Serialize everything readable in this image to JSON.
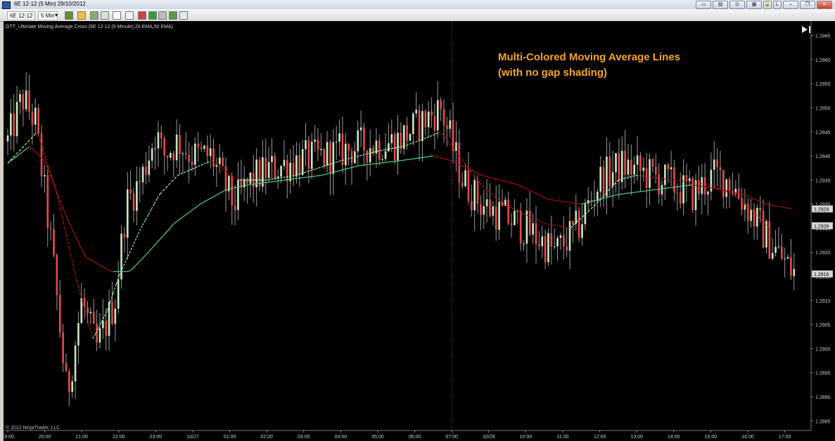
{
  "window": {
    "title": "6E 12-12 (5 Min)  29/10/2012",
    "buttons": [
      "min",
      "restore",
      "close"
    ],
    "extra_badges": [
      "L"
    ]
  },
  "toolbar": {
    "instrument": "6E 12-12",
    "interval": "5 Min",
    "icons": [
      "bars-type-icon",
      "pencil-icon",
      "drawing-icon",
      "pin-icon",
      "crosshair-icon",
      "properties-icon",
      "data-box-icon",
      "strategy-icon",
      "chart-trader-icon",
      "new-window-icon"
    ]
  },
  "chart_data": {
    "type": "candlestick",
    "indicator_label": "GTT_Ultimate Moving Average Cross (6E 12-12 (5 Minute),20 EMA,50 EMA)",
    "annotation": [
      "Multi-Colored Moving Average Lines",
      "(with no gap shading)"
    ],
    "copyright": "© 2012 NinjaTrader, LLC",
    "x_labels": [
      "19:00",
      "20:00",
      "21:00",
      "22:00",
      "23:00",
      "10/27",
      "01:00",
      "02:00",
      "03:00",
      "04:00",
      "05:00",
      "06:00",
      "07:00",
      "10/29",
      "10:00",
      "11:00",
      "12:00",
      "13:00",
      "14:00",
      "15:00",
      "16:00",
      "17:00"
    ],
    "y_labels": [
      "1.2965",
      "1.2960",
      "1.2955",
      "1.2950",
      "1.2945",
      "1.2940",
      "1.2935",
      "1.2930",
      "1.2925",
      "1.2920",
      "1.2915",
      "1.2910",
      "1.2905",
      "1.2900",
      "1.2895",
      "1.2890",
      "1.2885"
    ],
    "ylim": [
      1.2883,
      1.2968
    ],
    "price_markers": [
      {
        "value": 1.2929,
        "label": "1.2929"
      },
      {
        "value": 1.29255,
        "label": "1.2926"
      },
      {
        "value": 1.29155,
        "label": "1.2916"
      }
    ],
    "session_break_index": 12,
    "anchors": {
      "close_path": [
        [
          0,
          1.2943
        ],
        [
          0.4,
          1.2952
        ],
        [
          0.75,
          1.2947
        ],
        [
          1.2,
          1.292
        ],
        [
          1.6,
          1.289
        ],
        [
          2.0,
          1.291
        ],
        [
          2.4,
          1.29
        ],
        [
          2.9,
          1.291
        ],
        [
          3.2,
          1.293
        ],
        [
          3.6,
          1.2935
        ],
        [
          4.0,
          1.2945
        ],
        [
          4.2,
          1.294
        ],
        [
          4.6,
          1.2943
        ],
        [
          5.0,
          1.294
        ],
        [
          5.5,
          1.294
        ],
        [
          6.1,
          1.293
        ],
        [
          6.6,
          1.2935
        ],
        [
          7.0,
          1.2937
        ],
        [
          7.8,
          1.2939
        ],
        [
          8.6,
          1.294
        ],
        [
          9.5,
          1.2942
        ],
        [
          10.5,
          1.2943
        ],
        [
          11.2,
          1.2947
        ],
        [
          11.7,
          1.295
        ],
        [
          12.3,
          1.2935
        ],
        [
          12.8,
          1.293
        ],
        [
          13.3,
          1.2928
        ],
        [
          14.0,
          1.2925
        ],
        [
          14.8,
          1.292
        ],
        [
          15.4,
          1.2925
        ],
        [
          16.0,
          1.2935
        ],
        [
          16.6,
          1.2938
        ],
        [
          17.0,
          1.2937
        ],
        [
          17.7,
          1.2935
        ],
        [
          18.5,
          1.2932
        ],
        [
          19.1,
          1.2936
        ],
        [
          19.5,
          1.2935
        ],
        [
          20.1,
          1.2928
        ],
        [
          20.6,
          1.2922
        ],
        [
          21.0,
          1.2918
        ],
        [
          21.2,
          1.2916
        ]
      ],
      "ema20": [
        [
          0,
          1.29385
        ],
        [
          0.8,
          1.2945
        ],
        [
          1.3,
          1.2933
        ],
        [
          1.9,
          1.2913
        ],
        [
          2.3,
          1.2902
        ],
        [
          2.7,
          1.2908
        ],
        [
          3.0,
          1.2915
        ],
        [
          3.6,
          1.2925
        ],
        [
          4.1,
          1.2932
        ],
        [
          4.6,
          1.2936
        ],
        [
          5.5,
          1.2939
        ],
        [
          6.2,
          1.2935
        ],
        [
          7.0,
          1.2935
        ],
        [
          7.8,
          1.2936
        ],
        [
          9.0,
          1.2939
        ],
        [
          10.0,
          1.2941
        ],
        [
          10.7,
          1.2942
        ],
        [
          11.4,
          1.2944
        ],
        [
          11.7,
          1.2945
        ],
        [
          12.2,
          1.294
        ],
        [
          12.8,
          1.2934
        ],
        [
          13.4,
          1.293
        ],
        [
          14.5,
          1.2926
        ],
        [
          15.2,
          1.2925
        ],
        [
          15.9,
          1.293
        ],
        [
          16.5,
          1.2935
        ],
        [
          17.0,
          1.2936
        ],
        [
          18.0,
          1.2935
        ],
        [
          19.0,
          1.2934
        ],
        [
          19.6,
          1.2932
        ],
        [
          20.2,
          1.2928
        ],
        [
          20.6,
          1.2925
        ]
      ],
      "ema50": [
        [
          0,
          1.29385
        ],
        [
          0.6,
          1.2942
        ],
        [
          1.0,
          1.2939
        ],
        [
          1.6,
          1.2927
        ],
        [
          2.1,
          1.2919
        ],
        [
          2.8,
          1.2916
        ],
        [
          3.3,
          1.2916
        ],
        [
          3.8,
          1.292
        ],
        [
          4.5,
          1.2926
        ],
        [
          5.2,
          1.293
        ],
        [
          5.9,
          1.2933
        ],
        [
          6.5,
          1.2934
        ],
        [
          7.5,
          1.2935
        ],
        [
          8.5,
          1.2936
        ],
        [
          9.5,
          1.2938
        ],
        [
          10.6,
          1.2939
        ],
        [
          11.5,
          1.294
        ],
        [
          12.0,
          1.2939
        ],
        [
          12.8,
          1.2936
        ],
        [
          13.8,
          1.2934
        ],
        [
          14.6,
          1.2931
        ],
        [
          15.5,
          1.293
        ],
        [
          16.5,
          1.2932
        ],
        [
          17.5,
          1.2933
        ],
        [
          18.5,
          1.2934
        ],
        [
          19.3,
          1.2933
        ],
        [
          19.9,
          1.2932
        ],
        [
          20.5,
          1.293
        ],
        [
          21.2,
          1.2929
        ]
      ]
    },
    "colors": {
      "background": "#000000",
      "bull_candle": "#c8e6bf",
      "bear_candle": "#e8484f",
      "wick": "#9a9a9a",
      "ema20_up": "#8fe6a8",
      "ema20_down": "#b01414",
      "ema50_up": "#4bc47f",
      "ema50_down": "#9b0f0f",
      "annotation": "#f5a623",
      "axis_text": "#cccccc",
      "grid_marker": "#d7d7d7"
    }
  }
}
